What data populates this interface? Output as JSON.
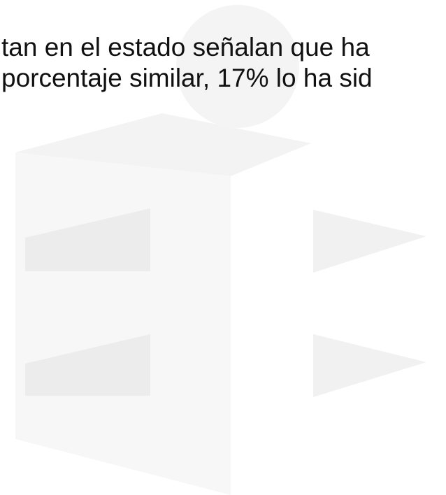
{
  "text": {
    "lines": [
      "tan en el estado señalan que ha",
      "porcentaje similar, 17% lo ha sid"
    ]
  }
}
